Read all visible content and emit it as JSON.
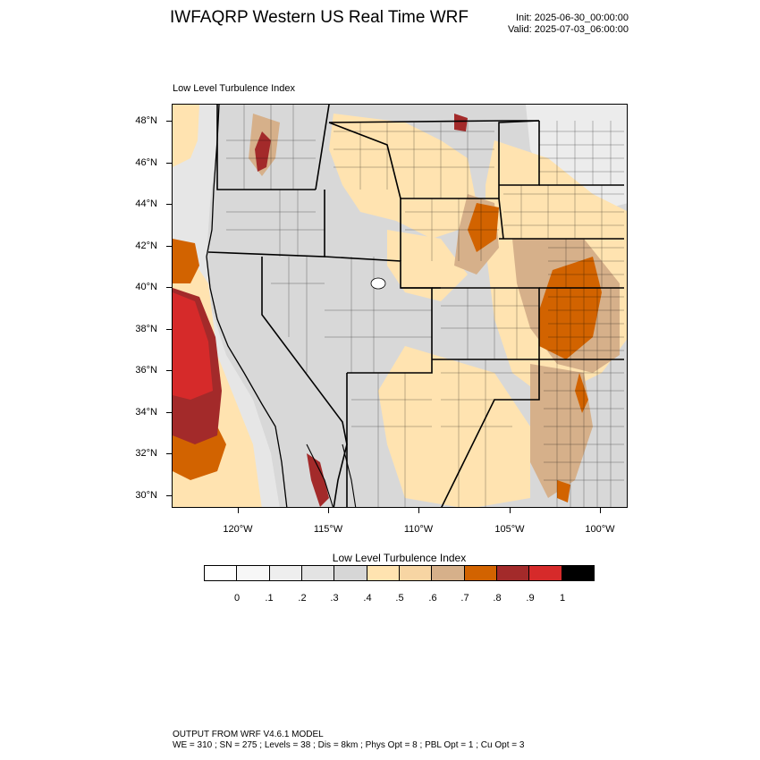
{
  "header": {
    "title": "IWFAQRP Western US Real Time WRF",
    "init_label": "Init: 2025-06-30_00:00:00",
    "valid_label": "Valid: 2025-07-03_06:00:00"
  },
  "map": {
    "title": "Low Level Turbulence Index",
    "lat_labels": [
      "48°N",
      "46°N",
      "44°N",
      "42°N",
      "40°N",
      "38°N",
      "36°N",
      "34°N",
      "32°N",
      "30°N"
    ],
    "lon_labels": [
      "120°W",
      "115°W",
      "110°W",
      "105°W",
      "100°W"
    ],
    "field": "Low Level Turbulence Index",
    "ocean_color": "#e6e6e6",
    "land_color": "#d8d8d8"
  },
  "colorbar": {
    "title": "Low Level Turbulence Index",
    "labels": [
      "0",
      ".1",
      ".2",
      ".3",
      ".4",
      ".5",
      ".6",
      ".7",
      ".8",
      ".9",
      "1"
    ],
    "colors": [
      "#ffffff",
      "#f7f7f7",
      "#eeeeee",
      "#e3e3e3",
      "#d6d6d6",
      "#ffe3b0",
      "#f7d5a3",
      "#d6b08a",
      "#d26300",
      "#a32a2a",
      "#d62a2a",
      "#000000"
    ]
  },
  "footer": {
    "line1": "OUTPUT FROM WRF V4.6.1 MODEL",
    "line2": "WE = 310 ; SN = 275 ; Levels = 38 ; Dis = 8km ; Phys Opt = 8 ; PBL Opt = 1 ; Cu Opt = 3"
  }
}
